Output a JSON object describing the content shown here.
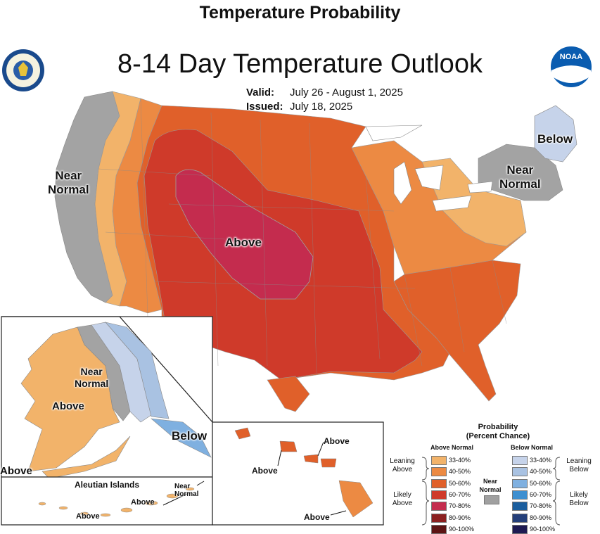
{
  "header": {
    "top_title": "Temperature Probability",
    "main_title": "8-14 Day Temperature Outlook",
    "valid_label": "Valid:",
    "valid_dates": "July 26 - August 1, 2025",
    "issued_label": "Issued:",
    "issued_date": "July 18, 2025"
  },
  "logos": {
    "commerce": "commerce-seal",
    "noaa": "NOAA"
  },
  "map_labels": {
    "conus_near_normal_west": "Near\nNormal",
    "conus_near_normal_ne": "Near\nNormal",
    "conus_below": "Below",
    "conus_above": "Above",
    "alaska_near_normal": "Near\nNormal",
    "alaska_above": "Above",
    "alaska_below": "Below",
    "alaska_above_sw": "Above",
    "hawaii_above_1": "Above",
    "hawaii_above_2": "Above",
    "hawaii_above_3": "Above",
    "aleutian_title": "Aleutian Islands",
    "aleutian_near_normal": "Near\nNormal",
    "aleutian_above_1": "Above",
    "aleutian_above_2": "Above"
  },
  "legend": {
    "title": "Probability",
    "subtitle": "(Percent Chance)",
    "above_header": "Above Normal",
    "below_header": "Below Normal",
    "near_normal": "Near\nNormal",
    "leaning_above": "Leaning\nAbove",
    "likely_above": "Likely\nAbove",
    "leaning_below": "Leaning\nBelow",
    "likely_below": "Likely\nBelow",
    "above_rows": [
      {
        "label": "33-40%",
        "color": "#f2b36a"
      },
      {
        "label": "40-50%",
        "color": "#ec8a43"
      },
      {
        "label": "50-60%",
        "color": "#e0602a"
      },
      {
        "label": "60-70%",
        "color": "#cf3a2a"
      },
      {
        "label": "70-80%",
        "color": "#c42c4e"
      },
      {
        "label": "80-90%",
        "color": "#8b2020"
      },
      {
        "label": "90-100%",
        "color": "#5c1414"
      }
    ],
    "below_rows": [
      {
        "label": "33-40%",
        "color": "#c6d3ea"
      },
      {
        "label": "40-50%",
        "color": "#a9c2e2"
      },
      {
        "label": "50-60%",
        "color": "#7fb0e0"
      },
      {
        "label": "60-70%",
        "color": "#3e8fd0"
      },
      {
        "label": "70-80%",
        "color": "#1b5e9e"
      },
      {
        "label": "80-90%",
        "color": "#243f7a"
      },
      {
        "label": "90-100%",
        "color": "#1d1a52"
      }
    ],
    "near_normal_color": "#a0a0a0"
  }
}
